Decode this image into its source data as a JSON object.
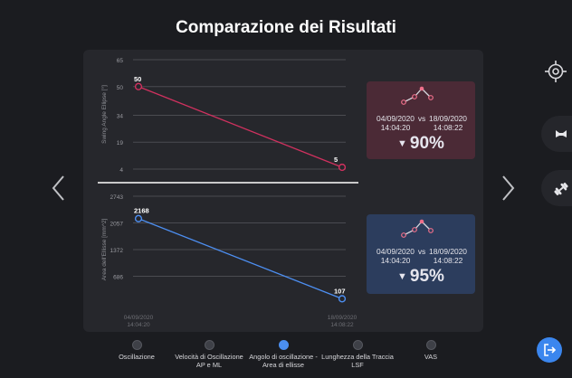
{
  "page": {
    "title": "Comparazione dei Risultati"
  },
  "chart_data": [
    {
      "type": "line",
      "ylabel": "Swing Angle Ellipse [°]",
      "yticks": [
        65,
        50,
        34,
        19,
        4
      ],
      "ylim": [
        4,
        65
      ],
      "x": [
        "04/09/2020 14:04:20",
        "18/09/2020 14:08:22"
      ],
      "series": [
        {
          "values": [
            50,
            5
          ],
          "color": "#d0315f"
        }
      ],
      "data_labels": [
        "50",
        "5"
      ]
    },
    {
      "type": "line",
      "ylabel": "Area dell'Ellisse [mm^2]",
      "yticks": [
        2743,
        2057,
        1372,
        686
      ],
      "ylim": [
        0,
        2743
      ],
      "x": [
        "04/09/2020 14:04:20",
        "18/09/2020 14:08:22"
      ],
      "series": [
        {
          "values": [
            2168,
            107
          ],
          "color": "#4d8ff2"
        }
      ],
      "data_labels": [
        "2168",
        "107"
      ]
    }
  ],
  "x_labels": [
    {
      "date": "04/09/2020",
      "time": "14:04:20"
    },
    {
      "date": "18/09/2020",
      "time": "14:08:22"
    }
  ],
  "stats": [
    {
      "date1": "04/09/2020",
      "time1": "14:04:20",
      "vs": "vs",
      "date2": "18/09/2020",
      "time2": "14:08:22",
      "percent": "90%",
      "spark_color": "#ee6f8a"
    },
    {
      "date1": "04/09/2020",
      "time1": "14:04:20",
      "vs": "vs",
      "date2": "18/09/2020",
      "time2": "14:08:22",
      "percent": "95%",
      "spark_color": "#ee6f8a"
    }
  ],
  "steps": [
    {
      "label1": "Oscillazione",
      "label2": ""
    },
    {
      "label1": "Velocità di Oscillazione",
      "label2": "AP e ML"
    },
    {
      "label1": "Angolo di oscillazione -",
      "label2": "Area di ellisse"
    },
    {
      "label1": "Lunghezza della Traccia",
      "label2": "LSF"
    },
    {
      "label1": "VAS",
      "label2": ""
    }
  ],
  "active_step": 2,
  "icons": {
    "prev": "chevron-left-icon",
    "next": "chevron-right-icon",
    "crosshair": "crosshair-icon",
    "balance": "balance-board-icon",
    "dumbbell": "dumbbell-icon",
    "logout": "logout-icon"
  }
}
